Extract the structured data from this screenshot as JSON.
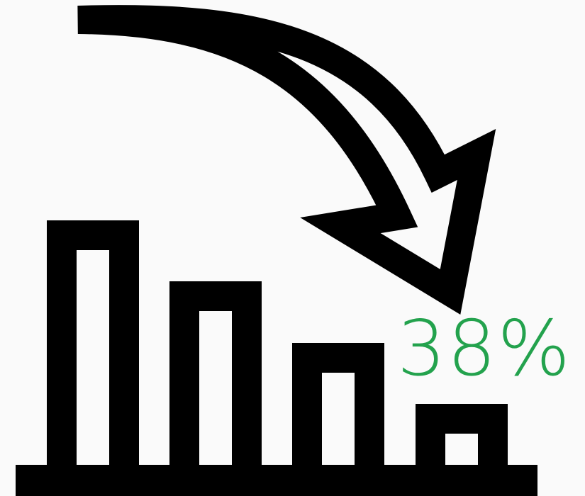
{
  "colors": {
    "background": "#fafafa",
    "icon": "#000000",
    "accent": "#23a24d"
  },
  "icons": {
    "bars": "descending-bar-chart-icon",
    "arrow": "curved-down-arrow-icon"
  },
  "stat": {
    "value": "38%"
  }
}
